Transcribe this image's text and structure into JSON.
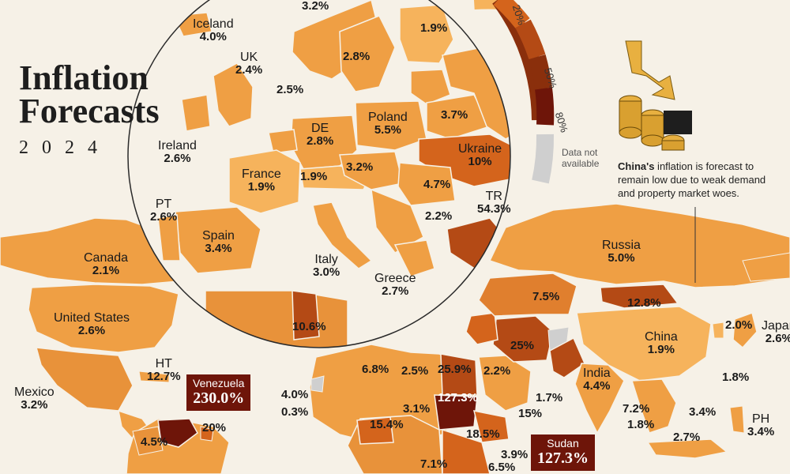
{
  "title_line1": "Inflation",
  "title_line2": "Forecasts",
  "year": "2024",
  "legend": {
    "labels": [
      "20%",
      "50%",
      "80%"
    ],
    "no_data": "Data not available",
    "colors": [
      "#f6b35c",
      "#ef9f44",
      "#e07f2e",
      "#d4641c",
      "#b44a15",
      "#8a2f0c",
      "#6e1509",
      "#cfcfcf"
    ]
  },
  "callout": {
    "country": "China's",
    "text": " inflation is forecast to remain low due to weak demand and property market woes."
  },
  "labels": [
    {
      "name": "",
      "value": "3.2%"
    },
    {
      "name": "",
      "value": "1.9%"
    },
    {
      "name": "Iceland",
      "value": "4.0%"
    },
    {
      "name": "",
      "value": "2.8%"
    },
    {
      "name": "UK",
      "value": "2.4%"
    },
    {
      "name": "",
      "value": "2.5%"
    },
    {
      "name": "Poland",
      "value": "5.5%"
    },
    {
      "name": "",
      "value": "3.7%"
    },
    {
      "name": "DE",
      "value": "2.8%"
    },
    {
      "name": "Ireland",
      "value": "2.6%"
    },
    {
      "name": "Ukraine",
      "value": "10%"
    },
    {
      "name": "France",
      "value": "1.9%"
    },
    {
      "name": "",
      "value": "1.9%"
    },
    {
      "name": "",
      "value": "3.2%"
    },
    {
      "name": "",
      "value": "4.7%"
    },
    {
      "name": "PT",
      "value": "2.6%"
    },
    {
      "name": "",
      "value": "2.2%"
    },
    {
      "name": "TR",
      "value": "54.3%"
    },
    {
      "name": "Spain",
      "value": "3.4%"
    },
    {
      "name": "Italy",
      "value": "3.0%"
    },
    {
      "name": "Greece",
      "value": "2.7%"
    },
    {
      "name": "Canada",
      "value": "2.1%"
    },
    {
      "name": "Russia",
      "value": "5.0%"
    },
    {
      "name": "United States",
      "value": "2.6%"
    },
    {
      "name": "",
      "value": "7.5%"
    },
    {
      "name": "",
      "value": "12.8%"
    },
    {
      "name": "",
      "value": "10.6%"
    },
    {
      "name": "",
      "value": "2.0%"
    },
    {
      "name": "Japan",
      "value": "2.6%"
    },
    {
      "name": "China",
      "value": "1.9%"
    },
    {
      "name": "",
      "value": "25%"
    },
    {
      "name": "HT",
      "value": "12.7%"
    },
    {
      "name": "",
      "value": "6.8%"
    },
    {
      "name": "",
      "value": "2.5%"
    },
    {
      "name": "",
      "value": "25.9%"
    },
    {
      "name": "",
      "value": "2.2%"
    },
    {
      "name": "India",
      "value": "4.4%"
    },
    {
      "name": "",
      "value": "1.8%"
    },
    {
      "name": "Mexico",
      "value": "3.2%"
    },
    {
      "name": "",
      "value": "4.0%"
    },
    {
      "name": "",
      "value": "0.3%"
    },
    {
      "name": "",
      "value": "127.3%"
    },
    {
      "name": "",
      "value": "1.7%"
    },
    {
      "name": "",
      "value": "3.1%"
    },
    {
      "name": "",
      "value": "15%"
    },
    {
      "name": "",
      "value": "7.2%"
    },
    {
      "name": "",
      "value": "1.8%"
    },
    {
      "name": "",
      "value": "3.4%"
    },
    {
      "name": "PH",
      "value": "3.4%"
    },
    {
      "name": "",
      "value": "20%"
    },
    {
      "name": "",
      "value": "15.4%"
    },
    {
      "name": "",
      "value": "18.5%"
    },
    {
      "name": "",
      "value": "4.5%"
    },
    {
      "name": "",
      "value": "2.7%"
    },
    {
      "name": "",
      "value": "3.9%"
    },
    {
      "name": "",
      "value": "7.1%"
    },
    {
      "name": "",
      "value": "6.5%"
    }
  ],
  "highlight_tags": [
    {
      "name": "Venezuela",
      "value": "230.0%"
    },
    {
      "name": "Sudan",
      "value": "127.3%"
    }
  ]
}
